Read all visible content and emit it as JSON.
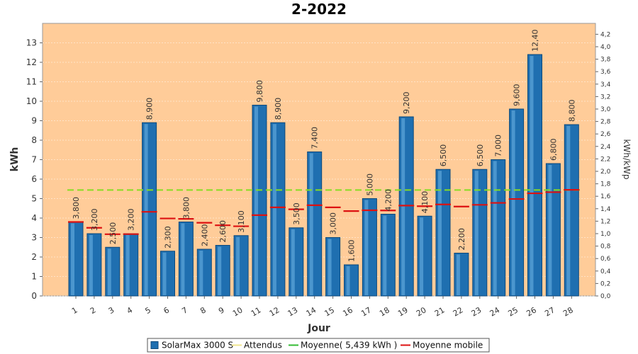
{
  "chart_data": {
    "type": "bar",
    "title": "2-2022",
    "xlabel": "Jour",
    "ylabel": "kWh",
    "y2label": "kWh/kWp",
    "ylim": [
      0,
      14
    ],
    "y2lim": [
      0,
      4.375
    ],
    "yticks": [
      0,
      1,
      2,
      3,
      4,
      5,
      6,
      7,
      8,
      9,
      10,
      11,
      12,
      13
    ],
    "y2ticks": [
      "0,0",
      "0,2",
      "0,4",
      "0,6",
      "0,8",
      "1,0",
      "1,2",
      "1,4",
      "1,6",
      "1,8",
      "2,0",
      "2,2",
      "2,4",
      "2,6",
      "2,8",
      "3,0",
      "3,2",
      "3,4",
      "3,6",
      "3,8",
      "4,0",
      "4,2"
    ],
    "categories": [
      "1",
      "2",
      "3",
      "4",
      "5",
      "6",
      "7",
      "8",
      "9",
      "10",
      "11",
      "12",
      "13",
      "14",
      "15",
      "16",
      "17",
      "18",
      "19",
      "20",
      "21",
      "22",
      "23",
      "24",
      "25",
      "26",
      "27",
      "28"
    ],
    "series": [
      {
        "name": "SolarMax 3000 S",
        "values": [
          3.8,
          3.2,
          2.5,
          3.2,
          8.9,
          2.3,
          3.8,
          2.4,
          2.6,
          3.1,
          9.8,
          8.9,
          3.5,
          7.4,
          3.0,
          1.6,
          5.0,
          4.2,
          9.2,
          4.1,
          6.5,
          2.2,
          6.5,
          7.0,
          9.6,
          12.4,
          6.8,
          8.8
        ],
        "labels": [
          "3,800",
          "3,200",
          "2,500",
          "3,200",
          "8,900",
          "2,300",
          "3,800",
          "2,400",
          "2,600",
          "3,100",
          "9,800",
          "8,900",
          "3,500",
          "7,400",
          "3,000",
          "1,600",
          "5,000",
          "4,200",
          "9,200",
          "4,100",
          "6,500",
          "2,200",
          "6,500",
          "7,000",
          "9,600",
          "12,40",
          "6,800",
          "8,800"
        ]
      },
      {
        "name": "Moyenne mobile",
        "values": [
          3.8,
          3.5,
          3.17,
          3.175,
          4.32,
          3.98,
          3.96,
          3.76,
          3.63,
          3.58,
          4.15,
          4.55,
          4.45,
          4.66,
          4.55,
          4.36,
          4.4,
          4.39,
          4.64,
          4.61,
          4.7,
          4.59,
          4.68,
          4.78,
          4.98,
          5.27,
          5.33,
          5.45
        ]
      }
    ],
    "average": {
      "name": "Moyenne( 5,439 kWh )",
      "value": 5.439
    },
    "legend": {
      "position": "bottom",
      "items": [
        {
          "label": "SolarMax 3000 S",
          "color": "#1f6fb0",
          "kind": "box"
        },
        {
          "label": "Attendus",
          "color": "#f0e68c",
          "kind": "line"
        },
        {
          "label": "Moyenne( 5,439 kWh )",
          "color": "#33bb33",
          "kind": "line"
        },
        {
          "label": "Moyenne mobile",
          "color": "#dd1111",
          "kind": "line"
        }
      ]
    },
    "colors": {
      "plot_bg": "#ffcc99",
      "bar": "#1f6fb0",
      "average": "#88dd22",
      "moving": "#dd1111"
    }
  }
}
